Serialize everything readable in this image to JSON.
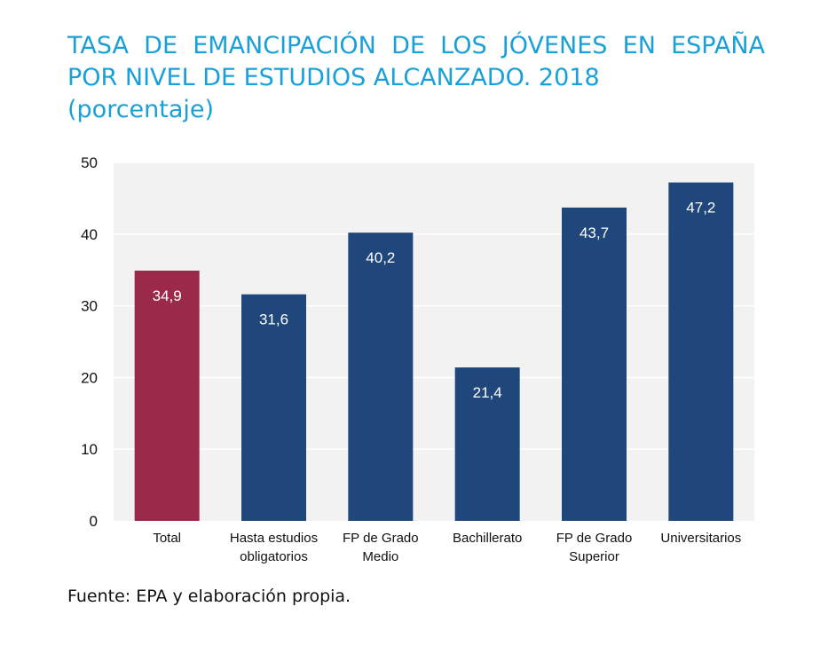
{
  "chart_data": {
    "type": "bar",
    "title_lines": [
      "TASA DE EMANCIPACIÓN DE LOS JÓVENES EN ESPAÑA",
      "POR NIVEL DE ESTUDIOS ALCANZADO. 2018",
      "(porcentaje)"
    ],
    "categories": [
      [
        "Total"
      ],
      [
        "Hasta estudios",
        "obligatorios"
      ],
      [
        "FP de Grado",
        "Medio"
      ],
      [
        "Bachillerato"
      ],
      [
        "FP de Grado",
        "Superior"
      ],
      [
        "Universitarios"
      ]
    ],
    "values": [
      34.9,
      31.6,
      40.2,
      21.4,
      43.7,
      47.2
    ],
    "value_labels": [
      "34,9",
      "31,6",
      "40,2",
      "21,4",
      "43,7",
      "47,2"
    ],
    "bar_colors": [
      "#9b2a4a",
      "#1f477b",
      "#1f477b",
      "#1f477b",
      "#1f477b",
      "#1f477b"
    ],
    "ylim": [
      0,
      50
    ],
    "yticks": [
      0,
      10,
      20,
      30,
      40,
      50
    ],
    "grid": true,
    "xlabel": "",
    "ylabel": "",
    "legend": "none"
  },
  "colors": {
    "title": "#1aa0d8",
    "plot_background": "#f2f2f2",
    "grid": "#ffffff"
  },
  "source": "Fuente: EPA y elaboración propia."
}
